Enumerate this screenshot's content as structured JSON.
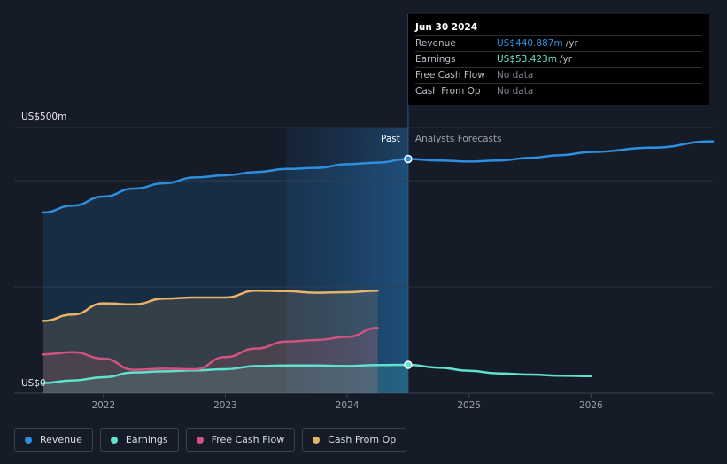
{
  "chart_data": {
    "type": "line",
    "y_axis_top_label": "US$500m",
    "y_axis_bottom_label": "US$0",
    "ylim": [
      0,
      500
    ],
    "xlim": [
      2021.5,
      2027.0
    ],
    "x_ticks": [
      {
        "value": 2022,
        "label": "2022"
      },
      {
        "value": 2023,
        "label": "2023"
      },
      {
        "value": 2024,
        "label": "2024"
      },
      {
        "value": 2025,
        "label": "2025"
      },
      {
        "value": 2026,
        "label": "2026"
      }
    ],
    "past_label": "Past",
    "forecast_label": "Analysts Forecasts",
    "past_shade_start": 2023.5,
    "divider_x": 2024.5,
    "series": [
      {
        "name": "Revenue",
        "key": "revenue",
        "color": "#2d8fe0",
        "fill": true,
        "past": [
          [
            2021.5,
            340
          ],
          [
            2021.75,
            353
          ],
          [
            2022.0,
            370
          ],
          [
            2022.25,
            385
          ],
          [
            2022.5,
            395
          ],
          [
            2022.75,
            406
          ],
          [
            2023.0,
            410
          ],
          [
            2023.25,
            416
          ],
          [
            2023.5,
            422
          ],
          [
            2023.75,
            424
          ],
          [
            2024.0,
            431
          ],
          [
            2024.25,
            434
          ],
          [
            2024.5,
            440.9
          ]
        ],
        "forecast": [
          [
            2024.5,
            440.9
          ],
          [
            2024.75,
            438
          ],
          [
            2025.0,
            436
          ],
          [
            2025.25,
            438
          ],
          [
            2025.5,
            443
          ],
          [
            2025.75,
            448
          ],
          [
            2026.0,
            454
          ],
          [
            2026.5,
            462
          ],
          [
            2027.0,
            474
          ]
        ]
      },
      {
        "name": "Earnings",
        "key": "earnings",
        "color": "#5fe3cc",
        "fill": true,
        "past": [
          [
            2021.5,
            19
          ],
          [
            2021.75,
            24
          ],
          [
            2022.0,
            30
          ],
          [
            2022.25,
            39
          ],
          [
            2022.5,
            41
          ],
          [
            2022.75,
            43
          ],
          [
            2023.0,
            45
          ],
          [
            2023.25,
            51
          ],
          [
            2023.5,
            52
          ],
          [
            2023.75,
            52
          ],
          [
            2024.0,
            51
          ],
          [
            2024.25,
            53
          ],
          [
            2024.5,
            53.4
          ]
        ],
        "forecast": [
          [
            2024.5,
            53.4
          ],
          [
            2024.75,
            48
          ],
          [
            2025.0,
            42
          ],
          [
            2025.25,
            37
          ],
          [
            2025.5,
            35
          ],
          [
            2025.75,
            33
          ],
          [
            2026.0,
            32
          ]
        ]
      },
      {
        "name": "Free Cash Flow",
        "key": "fcf",
        "color": "#d3527f",
        "fill": true,
        "past": [
          [
            2021.5,
            73
          ],
          [
            2021.75,
            77
          ],
          [
            2022.0,
            65
          ],
          [
            2022.25,
            44
          ],
          [
            2022.5,
            46
          ],
          [
            2022.75,
            45
          ],
          [
            2023.0,
            68
          ],
          [
            2023.25,
            84
          ],
          [
            2023.5,
            97
          ],
          [
            2023.75,
            100
          ],
          [
            2024.0,
            106
          ],
          [
            2024.25,
            123
          ]
        ],
        "forecast": []
      },
      {
        "name": "Cash From Op",
        "key": "cfo",
        "color": "#e9b467",
        "fill": true,
        "past": [
          [
            2021.5,
            136
          ],
          [
            2021.75,
            148
          ],
          [
            2022.0,
            169
          ],
          [
            2022.25,
            167
          ],
          [
            2022.5,
            178
          ],
          [
            2022.75,
            180
          ],
          [
            2023.0,
            180
          ],
          [
            2023.25,
            193
          ],
          [
            2023.5,
            192
          ],
          [
            2023.75,
            189
          ],
          [
            2024.0,
            190
          ],
          [
            2024.25,
            193
          ]
        ],
        "forecast": []
      }
    ]
  },
  "tooltip": {
    "date": "Jun 30 2024",
    "rows": [
      {
        "label": "Revenue",
        "value": "US$440.887m",
        "unit": "/yr",
        "color": "#2d8fe0"
      },
      {
        "label": "Earnings",
        "value": "US$53.423m",
        "unit": "/yr",
        "color": "#5fe3cc"
      },
      {
        "label": "Free Cash Flow",
        "value": "No data",
        "unit": "",
        "color": "#7e838c"
      },
      {
        "label": "Cash From Op",
        "value": "No data",
        "unit": "",
        "color": "#7e838c"
      }
    ]
  },
  "legend": [
    {
      "label": "Revenue",
      "color": "#2d8fe0"
    },
    {
      "label": "Earnings",
      "color": "#5fe3cc"
    },
    {
      "label": "Free Cash Flow",
      "color": "#d3527f"
    },
    {
      "label": "Cash From Op",
      "color": "#e9b467"
    }
  ]
}
